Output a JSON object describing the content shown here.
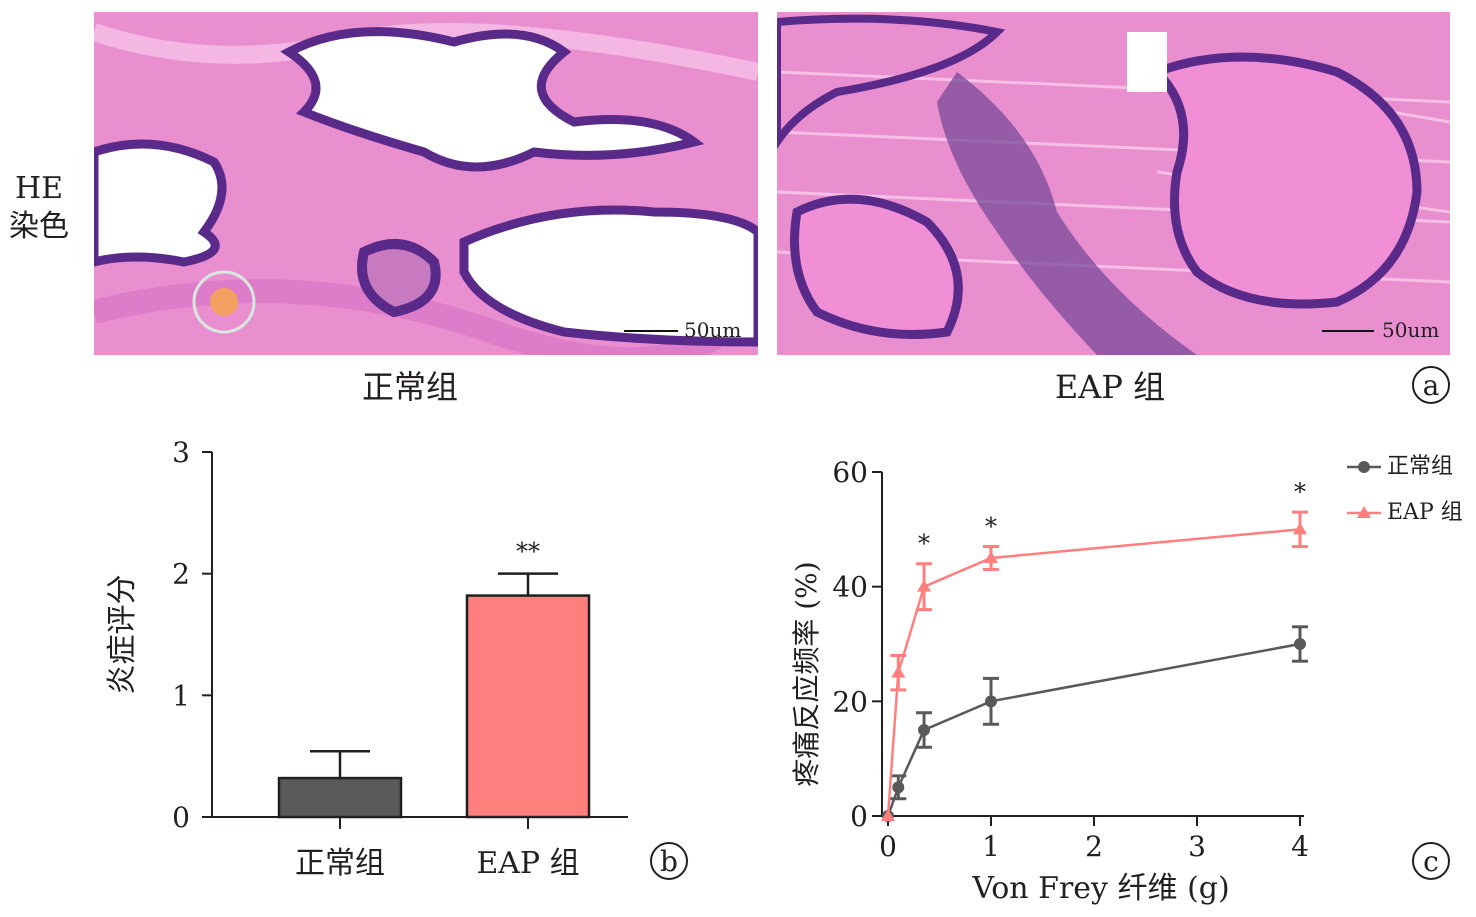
{
  "panel_a": {
    "row_label_line1": "HE",
    "row_label_line2": "染色",
    "image_left_caption": "正常组",
    "image_right_caption": "EAP 组",
    "scale_bar_left": "50um",
    "scale_bar_right": "50um",
    "panel_letter": "a",
    "colors": {
      "tissue": "#e98fcf",
      "nuclei": "#5a2a8a",
      "lumen": "#ffffff",
      "stroma": "#dd7cc8"
    }
  },
  "panel_b_letter": "b",
  "panel_c_letter": "c",
  "chart_data": [
    {
      "type": "bar",
      "title": "",
      "xlabel": "",
      "ylabel": "炎症评分",
      "ylim": [
        0,
        3
      ],
      "yticks": [
        0,
        1,
        2,
        3
      ],
      "categories": [
        "正常组",
        "EAP 组"
      ],
      "values": [
        0.32,
        1.82
      ],
      "errors": [
        0.22,
        0.18
      ],
      "colors": [
        "#595959",
        "#ff7f7f"
      ],
      "annotations": [
        "",
        "**"
      ]
    },
    {
      "type": "line",
      "title": "",
      "xlabel": "Von Frey 纤维 (g)",
      "ylabel": "疼痛反应频率 (%)",
      "xlim": [
        0,
        4
      ],
      "ylim": [
        0,
        60
      ],
      "xticks": [
        0,
        1,
        2,
        3,
        4
      ],
      "yticks": [
        0,
        20,
        40,
        60
      ],
      "legend_position": "top-right",
      "series": [
        {
          "name": "正常组",
          "marker": "circle",
          "color": "#595959",
          "x": [
            0,
            0.1,
            0.35,
            1,
            4
          ],
          "y": [
            0,
            5,
            15,
            20,
            30
          ],
          "err": [
            0,
            2,
            3,
            4,
            3
          ]
        },
        {
          "name": "EAP 组",
          "marker": "triangle",
          "color": "#ff7f7f",
          "x": [
            0,
            0.1,
            0.35,
            1,
            4
          ],
          "y": [
            0,
            25,
            40,
            45,
            50
          ],
          "err": [
            0,
            3,
            4,
            2,
            3
          ],
          "significance": [
            "",
            "",
            "*",
            "*",
            "*"
          ]
        }
      ]
    }
  ]
}
